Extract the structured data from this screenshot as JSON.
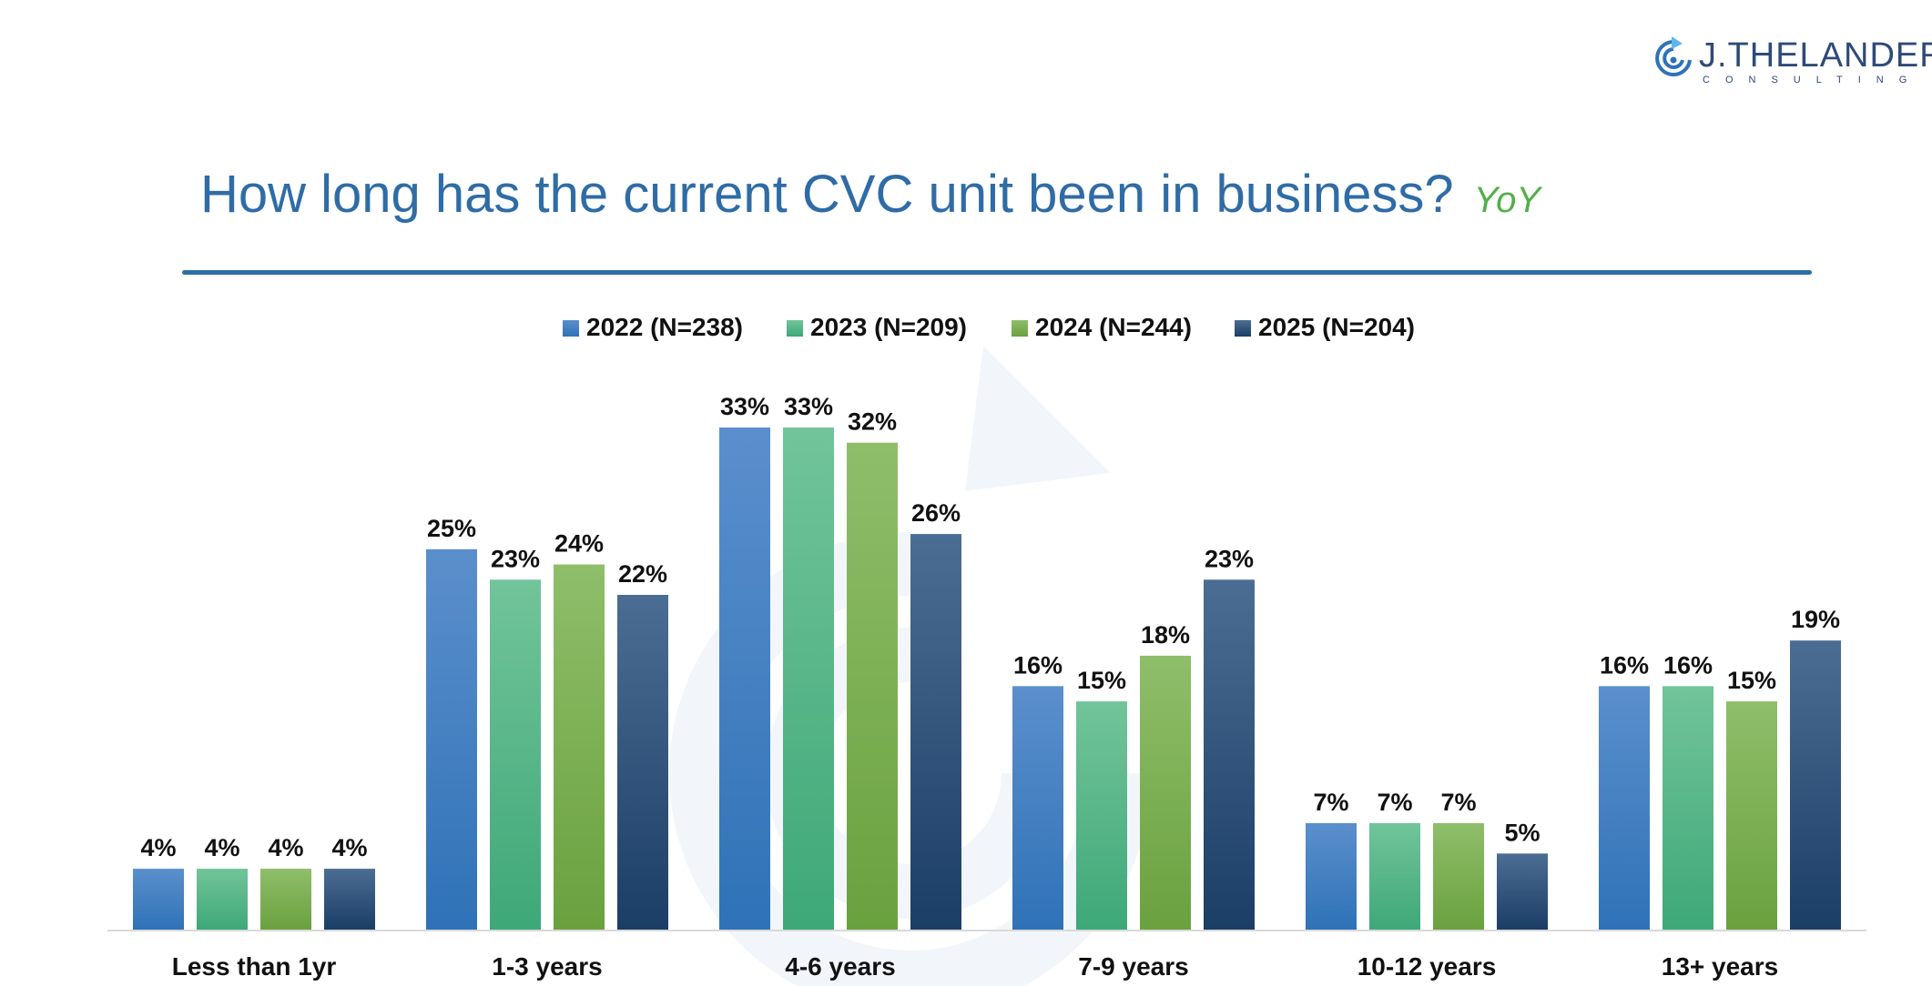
{
  "header": {
    "logo_main": "J.THELANDER",
    "logo_sub": "CONSULTING",
    "title": "How long has the current CVC unit been in business?",
    "title_tag": "YoY"
  },
  "colors": {
    "title": "#2f6ca6",
    "accent_green": "#52b04a",
    "rule": "#2a6fa5"
  },
  "chart_data": {
    "type": "bar",
    "categories": [
      "Less than 1yr",
      "1-3 years",
      "4-6 years",
      "7-9 years",
      "10-12 years",
      "13+ years"
    ],
    "series": [
      {
        "name": "2022 (N=238)",
        "values": [
          4,
          25,
          33,
          16,
          7,
          16
        ],
        "color_top": "#5b8fcc",
        "color_bottom": "#2f72b7"
      },
      {
        "name": "2023 (N=209)",
        "values": [
          4,
          23,
          33,
          15,
          7,
          16
        ],
        "color_top": "#72c49a",
        "color_bottom": "#3ea878"
      },
      {
        "name": "2024 (N=244)",
        "values": [
          4,
          24,
          32,
          18,
          7,
          15
        ],
        "color_top": "#8fbe6a",
        "color_bottom": "#6aa13f"
      },
      {
        "name": "2025 (N=204)",
        "values": [
          4,
          22,
          26,
          23,
          5,
          19
        ],
        "color_top": "#4c6d93",
        "color_bottom": "#1b3e66"
      }
    ],
    "value_suffix": "%",
    "ylim": [
      0,
      35
    ],
    "grid": false,
    "legend": "top-center",
    "data_labels": true
  }
}
